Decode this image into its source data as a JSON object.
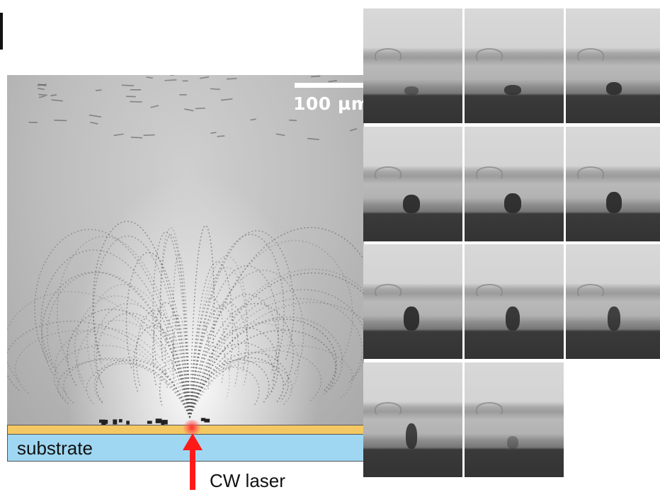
{
  "figure": {
    "main_scale_label": "100 µm",
    "substrate_label": "substrate",
    "laser_label": "CW laser",
    "colors": {
      "gold_layer": "#f3c862",
      "substrate": "#9fd7f2",
      "laser": "#ff1a1a"
    },
    "frame_count": 11
  }
}
